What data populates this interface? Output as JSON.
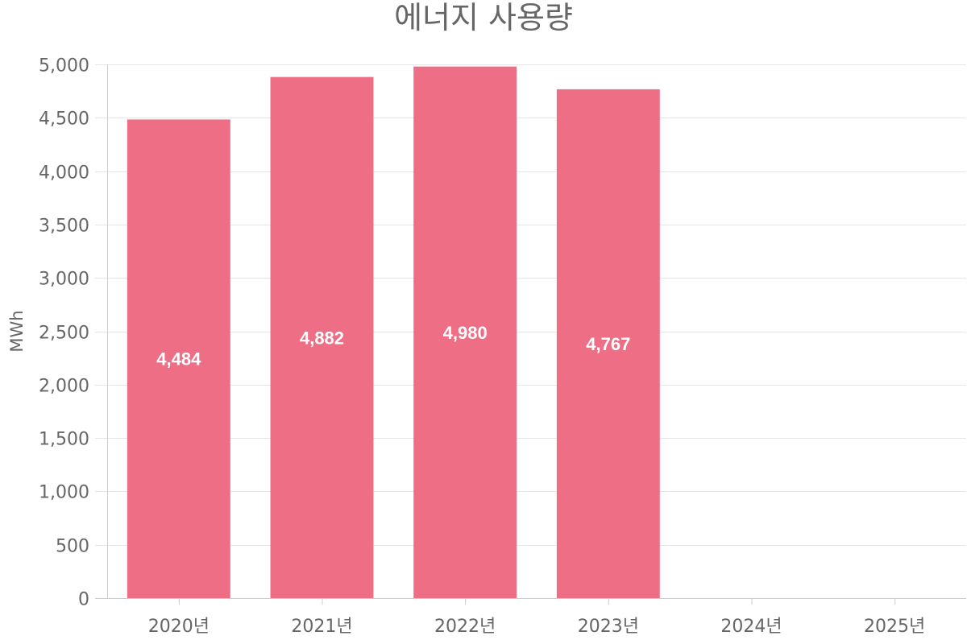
{
  "chart_data": {
    "type": "bar",
    "title": "에너지 사용량",
    "ylabel": "MWh",
    "xlabel": "",
    "categories": [
      "2020년",
      "2021년",
      "2022년",
      "2023년",
      "2024년",
      "2025년"
    ],
    "series": [
      {
        "values": [
          4484,
          4882,
          4980,
          4767,
          null,
          null
        ],
        "color": "#ed6e85",
        "data_labels": [
          "4,484",
          "4,882",
          "4,980",
          "4,767",
          "",
          ""
        ]
      }
    ],
    "ylim": [
      0,
      5000
    ],
    "y_ticks": [
      0,
      500,
      1000,
      1500,
      2000,
      2500,
      3000,
      3500,
      4000,
      4500,
      5000
    ],
    "y_tick_labels": [
      "0",
      "500",
      "1,000",
      "1,500",
      "2,000",
      "2,500",
      "3,000",
      "3,500",
      "4,000",
      "4,500",
      "5,000"
    ],
    "grid": true,
    "legend": "none"
  }
}
